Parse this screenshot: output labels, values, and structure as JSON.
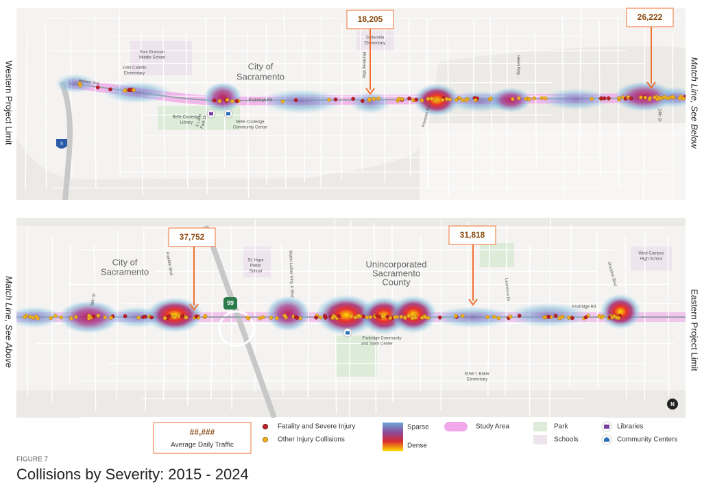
{
  "side_labels": {
    "western": "Western Project Limit",
    "match_below": "Match Line, See Below",
    "match_above": "Match Line, See Above",
    "eastern": "Eastern Project Limit"
  },
  "callouts": [
    "18,205",
    "26,222",
    "37,752",
    "31,818"
  ],
  "top_map": {
    "city": [
      "City of",
      "Sacramento"
    ],
    "sam_brannan": [
      "Sam Brannan",
      "Middle School"
    ],
    "john_cabrillo": [
      "John Cabrillo",
      "Elementary"
    ],
    "sutterville": [
      "Sutterville",
      "Elementary"
    ],
    "belle_library": [
      "Belle Cooledge",
      "Library"
    ],
    "belle_center": [
      "Belle Cooledge",
      "Community Center"
    ],
    "fruitridge": "Fruitridge Rd",
    "belmar": "Belmar Ave",
    "monterey": "Monterey Way",
    "helen": "Helen Way",
    "s_land_park": [
      "S Land",
      "Park Dr"
    ],
    "freeport": "Freeport Blvd",
    "st24": "24th St",
    "i5": "5"
  },
  "bottom_map": {
    "city": [
      "City of",
      "Sacramento"
    ],
    "unincorporated": [
      "Unincorporated",
      "Sacramento",
      "County"
    ],
    "st_hope": [
      "St. Hope",
      "Public",
      "School"
    ],
    "swim_center": [
      "Fruitridge Community",
      "and Swim Center"
    ],
    "ethel_baker": [
      "Ethel I. Baker",
      "Elementary"
    ],
    "west_campus": [
      "West Campus",
      "High School"
    ],
    "st28": "28th St",
    "franklin": "Franklin Blvd",
    "mlk": "Martin Luther King Jr Blvd",
    "lawrence": "Lawrence Dr",
    "stockton": "Stockton Blvd",
    "fruitridge": "Fruitridge Rd",
    "hwy99": "99",
    "north": "N"
  },
  "legend": {
    "adt_sample": "##,###",
    "adt_label": "Average Daily Traffic",
    "fatal": "Fatality and Severe Injury",
    "other": "Other Injury Collisions",
    "sparse": "Sparse",
    "dense": "Dense",
    "study_area": "Study Area",
    "park": "Park",
    "schools": "Schools",
    "libraries": "Libraries",
    "community_centers": "Community Centers"
  },
  "footer": {
    "figure": "FIGURE 7",
    "title": "Collisions by Severity: 2015 - 2024"
  }
}
